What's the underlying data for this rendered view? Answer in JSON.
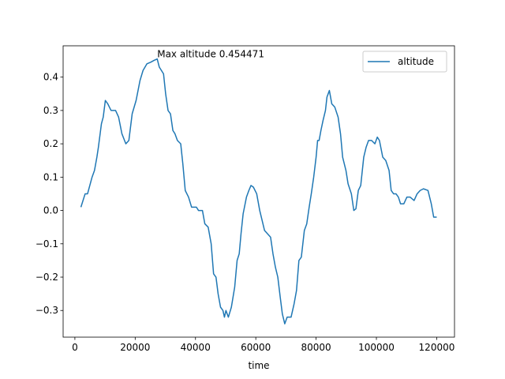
{
  "chart_data": {
    "type": "line",
    "xlabel": "time",
    "annotation": {
      "text": "Max altitude 0.454471",
      "x": 27300,
      "y": 0.454471
    },
    "legend": "upper right",
    "xlim": [
      -3900,
      125900
    ],
    "ylim": [
      -0.38,
      0.494
    ],
    "xticks": [
      0,
      20000,
      40000,
      60000,
      80000,
      100000,
      120000
    ],
    "yticks": [
      {
        "value": -0.3,
        "label": "−0.3"
      },
      {
        "value": -0.2,
        "label": "−0.2"
      },
      {
        "value": -0.1,
        "label": "−0.1"
      },
      {
        "value": 0,
        "label": "0.0"
      },
      {
        "value": 0.1,
        "label": "0.1"
      },
      {
        "value": 0.2,
        "label": "0.2"
      },
      {
        "value": 0.3,
        "label": "0.3"
      },
      {
        "value": 0.4,
        "label": "0.4"
      }
    ],
    "x": [
      2000,
      3400,
      4200,
      5700,
      6500,
      7300,
      7800,
      8800,
      9400,
      10100,
      10900,
      12000,
      13500,
      14500,
      15600,
      16900,
      17900,
      19000,
      20300,
      21600,
      22600,
      23900,
      25200,
      26200,
      27300,
      28000,
      29400,
      30100,
      30900,
      31700,
      32500,
      33200,
      34000,
      35100,
      35800,
      36600,
      37700,
      38700,
      40300,
      41000,
      42300,
      43100,
      44200,
      45200,
      46000,
      46800,
      47500,
      48300,
      49100,
      49600,
      50100,
      50900,
      51900,
      53000,
      53800,
      54500,
      55100,
      55800,
      56900,
      57700,
      58400,
      59200,
      60300,
      61300,
      62100,
      62900,
      63900,
      64900,
      65700,
      66500,
      67300,
      68100,
      68800,
      69600,
      70400,
      71700,
      72700,
      73500,
      74300,
      75100,
      76100,
      76900,
      77700,
      78400,
      79200,
      80000,
      80500,
      81000,
      81600,
      82300,
      83100,
      83600,
      84400,
      85200,
      86200,
      87300,
      88100,
      88800,
      89900,
      90600,
      91700,
      92500,
      93200,
      94000,
      94800,
      95800,
      96600,
      97400,
      98400,
      99500,
      100300,
      101000,
      102100,
      103100,
      104200,
      104900,
      105700,
      106500,
      107300,
      108000,
      109100,
      110100,
      111200,
      112500,
      113500,
      114500,
      115600,
      117100,
      118200,
      119000,
      120000
    ],
    "series": [
      {
        "name": "altitude",
        "color": "#1f77b4",
        "values": [
          0.01,
          0.05,
          0.05,
          0.1,
          0.12,
          0.16,
          0.19,
          0.26,
          0.28,
          0.33,
          0.32,
          0.3,
          0.3,
          0.28,
          0.23,
          0.2,
          0.21,
          0.29,
          0.33,
          0.39,
          0.42,
          0.44,
          0.445,
          0.45,
          0.454471,
          0.43,
          0.41,
          0.35,
          0.3,
          0.29,
          0.24,
          0.23,
          0.21,
          0.2,
          0.14,
          0.06,
          0.04,
          0.01,
          0.01,
          0,
          0,
          -0.04,
          -0.05,
          -0.1,
          -0.19,
          -0.2,
          -0.25,
          -0.29,
          -0.3,
          -0.32,
          -0.3,
          -0.32,
          -0.29,
          -0.23,
          -0.15,
          -0.13,
          -0.07,
          -0.01,
          0.04,
          0.06,
          0.075,
          0.07,
          0.05,
          0,
          -0.03,
          -0.06,
          -0.07,
          -0.08,
          -0.13,
          -0.17,
          -0.2,
          -0.26,
          -0.31,
          -0.34,
          -0.32,
          -0.32,
          -0.28,
          -0.24,
          -0.15,
          -0.14,
          -0.06,
          -0.04,
          0.01,
          0.05,
          0.1,
          0.16,
          0.21,
          0.21,
          0.24,
          0.27,
          0.3,
          0.34,
          0.36,
          0.32,
          0.31,
          0.28,
          0.23,
          0.16,
          0.12,
          0.08,
          0.05,
          0,
          0.005,
          0.06,
          0.075,
          0.16,
          0.19,
          0.21,
          0.21,
          0.2,
          0.22,
          0.21,
          0.16,
          0.15,
          0.12,
          0.06,
          0.05,
          0.05,
          0.04,
          0.02,
          0.02,
          0.04,
          0.04,
          0.03,
          0.05,
          0.06,
          0.065,
          0.06,
          0.02,
          -0.02,
          -0.02
        ]
      }
    ]
  }
}
